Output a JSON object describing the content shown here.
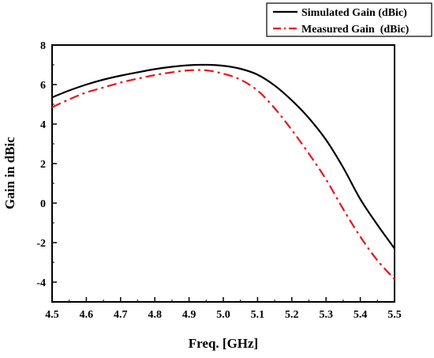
{
  "chart_data": {
    "type": "line",
    "title": "",
    "xlabel": "Freq. [GHz]",
    "ylabel": "Gain in dBic",
    "xlim": [
      4.5,
      5.5
    ],
    "ylim": [
      -5,
      8
    ],
    "x_ticks": [
      "4.5",
      "4.6",
      "4.7",
      "4.8",
      "4.9",
      "5.0",
      "5.1",
      "5.2",
      "5.3",
      "5.4",
      "5.5"
    ],
    "y_ticks": [
      "-4",
      "-2",
      "0",
      "2",
      "4",
      "6",
      "8"
    ],
    "grid": false,
    "legend_position": "top-right",
    "series": [
      {
        "name": "Simulated Gain (dBic)",
        "color": "#000000",
        "line_style": "solid",
        "x": [
          4.5,
          4.55,
          4.6,
          4.65,
          4.7,
          4.75,
          4.8,
          4.85,
          4.9,
          4.95,
          5.0,
          5.05,
          5.1,
          5.15,
          5.2,
          5.25,
          5.3,
          5.35,
          5.4,
          5.45,
          5.5
        ],
        "y": [
          5.35,
          5.7,
          6.0,
          6.25,
          6.45,
          6.62,
          6.78,
          6.9,
          6.98,
          7.0,
          6.95,
          6.8,
          6.5,
          5.95,
          5.2,
          4.3,
          3.2,
          1.8,
          0.2,
          -1.1,
          -2.3
        ]
      },
      {
        "name": "Measured Gain  (dBic)",
        "color": "#e8141c",
        "line_style": "dash-dot",
        "x": [
          4.5,
          4.55,
          4.6,
          4.65,
          4.7,
          4.75,
          4.8,
          4.85,
          4.9,
          4.95,
          5.0,
          5.05,
          5.1,
          5.15,
          5.2,
          5.25,
          5.3,
          5.35,
          5.4,
          5.45,
          5.5
        ],
        "y": [
          4.85,
          5.25,
          5.6,
          5.85,
          6.1,
          6.3,
          6.48,
          6.62,
          6.72,
          6.72,
          6.55,
          6.25,
          5.7,
          4.8,
          3.7,
          2.5,
          1.2,
          -0.3,
          -1.7,
          -2.9,
          -3.85
        ]
      }
    ]
  }
}
